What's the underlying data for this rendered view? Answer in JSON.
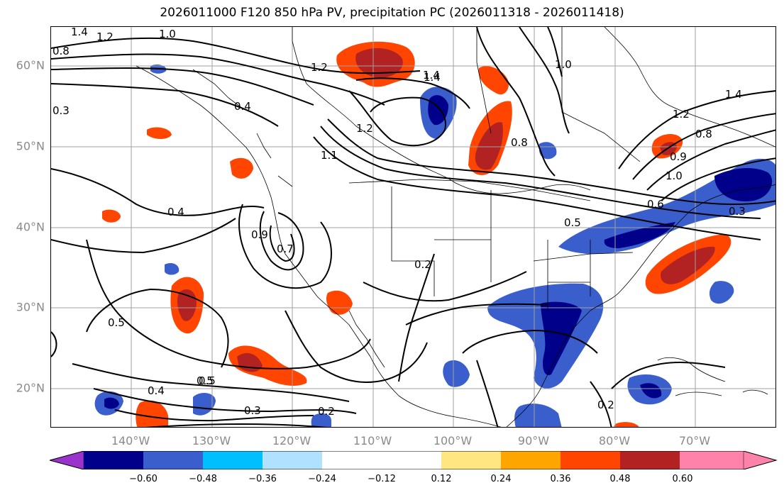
{
  "title": "2026011000 F120 850 hPa PV, precipitation PC (2026011318 - 2026011418)",
  "lat_labels": [
    "60°N",
    "50°N",
    "40°N",
    "30°N",
    "20°N"
  ],
  "lon_labels": [
    "140°W",
    "130°W",
    "120°W",
    "110°W",
    "100°W",
    "90°W",
    "80°W",
    "70°W"
  ],
  "colorbar": {
    "ticks": [
      "−0.60",
      "−0.48",
      "−0.36",
      "−0.24",
      "−0.12",
      "0.12",
      "0.24",
      "0.36",
      "0.48",
      "0.60"
    ],
    "colors": [
      "#9a32cd",
      "#00008b",
      "#3a5fcd",
      "#00bfff",
      "#b0e2ff",
      "#ffffff",
      "#ffe680",
      "#ffa500",
      "#ff4500",
      "#b22222",
      "#ff82ab"
    ]
  },
  "contour_labels": [
    "1.4",
    "1.2",
    "1.0",
    "0.8",
    "0.3",
    "1.2",
    "1.4",
    "1.0",
    "0.4",
    "1.2",
    "0.8",
    "1.4",
    "1.2",
    "1.0",
    "0.6",
    "0.4",
    "0.5",
    "0.2",
    "0.5",
    "0.5",
    "0.4",
    "0.5",
    "0.3",
    "0.2",
    "0.2",
    "1.4",
    "0.3",
    "0.7",
    "0.9",
    "0.9",
    "1.1",
    "0.8"
  ],
  "colors": {
    "grid": "#a0a0a0",
    "axis_label": "#8a8a8a",
    "contour": "#000000"
  }
}
